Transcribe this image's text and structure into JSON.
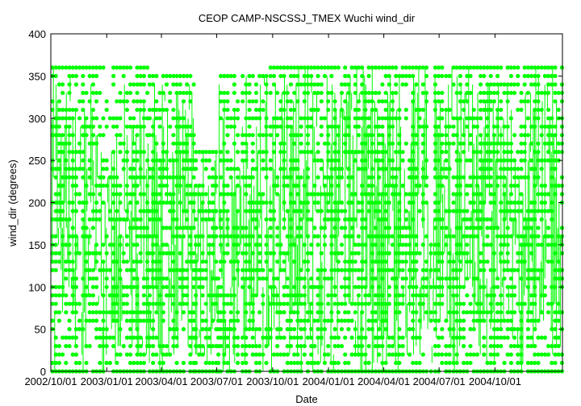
{
  "chart_data": {
    "type": "scatter",
    "title": "CEOP CAMP-NSCSSJ_TMEX Wuchi  wind_dir",
    "xlabel": "Date",
    "ylabel": "wind_dir (degrees)",
    "ylim": [
      0,
      400
    ],
    "yticks": [
      "0",
      "50",
      "100",
      "150",
      "200",
      "250",
      "300",
      "350",
      "400"
    ],
    "xlim": [
      "2002-10-01",
      "2005-01-20"
    ],
    "xticks": [
      {
        "date": "2002-10-01",
        "label": "2002/10/01"
      },
      {
        "date": "2003-01-01",
        "label": "2003/01/01"
      },
      {
        "date": "2003-04-01",
        "label": "2003/04/01"
      },
      {
        "date": "2003-07-01",
        "label": "2003/07/01"
      },
      {
        "date": "2003-10-01",
        "label": "2003/10/01"
      },
      {
        "date": "2004-01-01",
        "label": "2004/01/01"
      },
      {
        "date": "2004-04-01",
        "label": "2004/04/01"
      },
      {
        "date": "2004-07-01",
        "label": "2004/07/01"
      },
      {
        "date": "2004-10-01",
        "label": "2004/10/01"
      }
    ],
    "grid": false,
    "series": [
      {
        "color": "#00ff00",
        "segments": [
          {
            "start": "2002-10-01",
            "end": "2003-03-10",
            "ymax": 360
          },
          {
            "start": "2003-03-10",
            "end": "2003-05-25",
            "ymax": 350
          },
          {
            "start": "2003-05-25",
            "end": "2003-07-01",
            "ymax": 260
          },
          {
            "start": "2003-07-01",
            "end": "2003-07-05",
            "ymax": 115
          },
          {
            "start": "2003-07-05",
            "end": "2003-08-10",
            "ymax": 350
          },
          {
            "start": "2003-08-10",
            "end": "2003-09-25",
            "ymax": 350
          },
          {
            "start": "2003-09-25",
            "end": "2004-06-15",
            "ymax": 360
          },
          {
            "start": "2004-06-15",
            "end": "2004-06-22",
            "ymax": 150
          },
          {
            "start": "2004-06-22",
            "end": "2004-07-10",
            "ymax": 360
          },
          {
            "start": "2004-07-10",
            "end": "2004-07-22",
            "ymax": 350
          },
          {
            "start": "2004-07-22",
            "end": "2005-01-20",
            "ymax": 360
          }
        ]
      }
    ]
  }
}
